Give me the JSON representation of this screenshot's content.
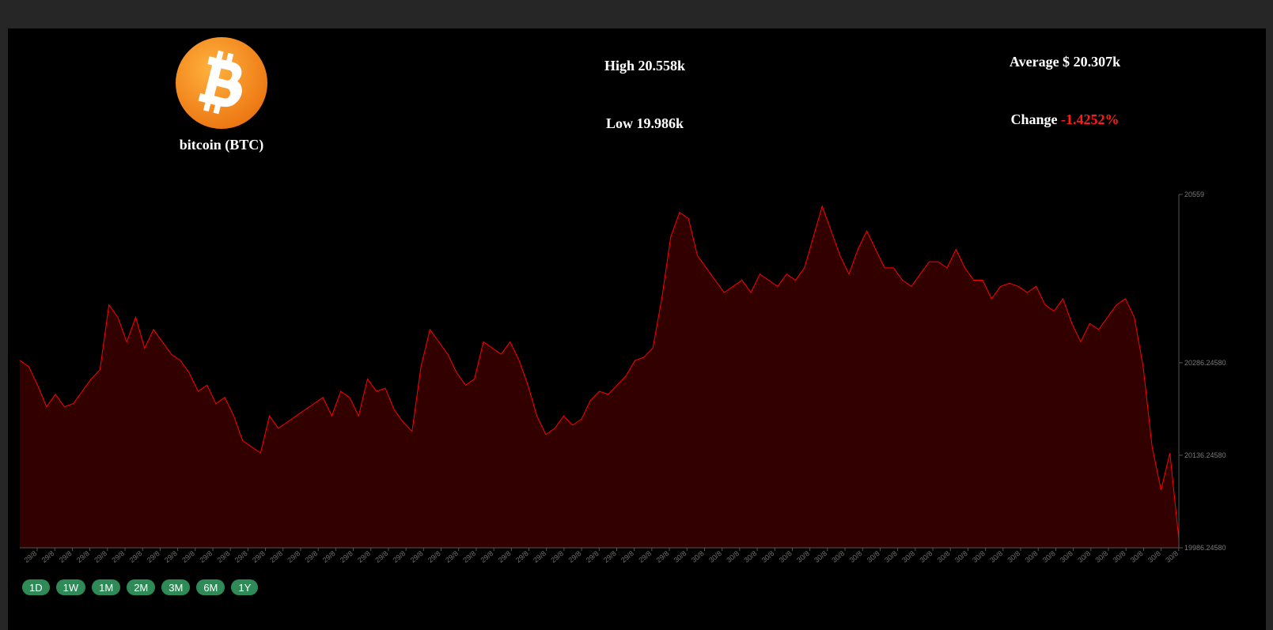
{
  "coin": {
    "name": "bitcoin (BTC)",
    "logo_icon": "bitcoin-logo-icon",
    "logo_color": "#f7931a"
  },
  "stats": {
    "high_label": "High",
    "high_value": "20.558k",
    "low_label": "Low",
    "low_value": "19.986k",
    "average_label": "Average $",
    "average_value": "20.307k",
    "change_label": "Change",
    "change_value": "-1.4252%"
  },
  "colors": {
    "line": "#ff0000",
    "fill": "#330000",
    "change_negative": "#ff1a1a",
    "button": "#2e8b57"
  },
  "range_buttons": [
    "1D",
    "1W",
    "1M",
    "2M",
    "3M",
    "6M",
    "1Y"
  ],
  "chart_data": {
    "type": "area",
    "y_ticks": [
      "20559",
      "20286.24580",
      "20136.24580",
      "19986.24580"
    ],
    "y_tick_values": [
      20559,
      20286.2458,
      20136.2458,
      19986.2458
    ],
    "ylim": [
      19986.2458,
      20559
    ],
    "x_tick_labels": [
      "29/8",
      "29/8",
      "29/8",
      "29/8",
      "29/8",
      "29/8",
      "29/8",
      "29/8",
      "29/8",
      "29/8",
      "29/8",
      "29/8",
      "29/8",
      "29/8",
      "29/8",
      "29/8",
      "29/8",
      "29/8",
      "29/8",
      "29/8",
      "29/8",
      "29/8",
      "29/8",
      "29/8",
      "29/8",
      "29/8",
      "29/8",
      "29/8",
      "29/8",
      "29/8",
      "29/8",
      "29/8",
      "29/8",
      "29/8",
      "29/8",
      "29/8",
      "29/8",
      "30/8",
      "30/8",
      "30/8",
      "30/8",
      "30/8",
      "30/8",
      "30/8",
      "30/8",
      "30/8",
      "30/8",
      "30/8",
      "30/8",
      "30/8",
      "30/8",
      "30/8",
      "30/8",
      "30/8",
      "30/8",
      "30/8",
      "30/8",
      "30/8",
      "30/8",
      "30/8",
      "30/8",
      "30/8",
      "30/8",
      "30/8",
      "30/8",
      "30/8"
    ],
    "values": [
      20290,
      20280,
      20250,
      20215,
      20235,
      20215,
      20220,
      20240,
      20260,
      20275,
      20380,
      20360,
      20320,
      20360,
      20310,
      20340,
      20320,
      20300,
      20290,
      20270,
      20240,
      20250,
      20220,
      20230,
      20200,
      20160,
      20150,
      20140,
      20200,
      20180,
      20190,
      20200,
      20210,
      20220,
      20230,
      20200,
      20240,
      20230,
      20200,
      20260,
      20240,
      20245,
      20210,
      20190,
      20175,
      20280,
      20340,
      20320,
      20300,
      20270,
      20250,
      20260,
      20320,
      20310,
      20300,
      20320,
      20290,
      20250,
      20200,
      20170,
      20180,
      20200,
      20185,
      20195,
      20225,
      20240,
      20235,
      20250,
      20265,
      20290,
      20295,
      20310,
      20390,
      20490,
      20530,
      20520,
      20460,
      20440,
      20420,
      20400,
      20410,
      20420,
      20400,
      20430,
      20420,
      20410,
      20430,
      20420,
      20440,
      20490,
      20540,
      20500,
      20460,
      20430,
      20470,
      20500,
      20470,
      20440,
      20440,
      20420,
      20410,
      20430,
      20450,
      20450,
      20440,
      20470,
      20440,
      20420,
      20420,
      20390,
      20410,
      20415,
      20410,
      20400,
      20410,
      20380,
      20370,
      20390,
      20350,
      20320,
      20350,
      20340,
      20360,
      20380,
      20390,
      20360,
      20280,
      20150,
      20080,
      20140,
      20000
    ],
    "series_color": "#ff0000"
  }
}
